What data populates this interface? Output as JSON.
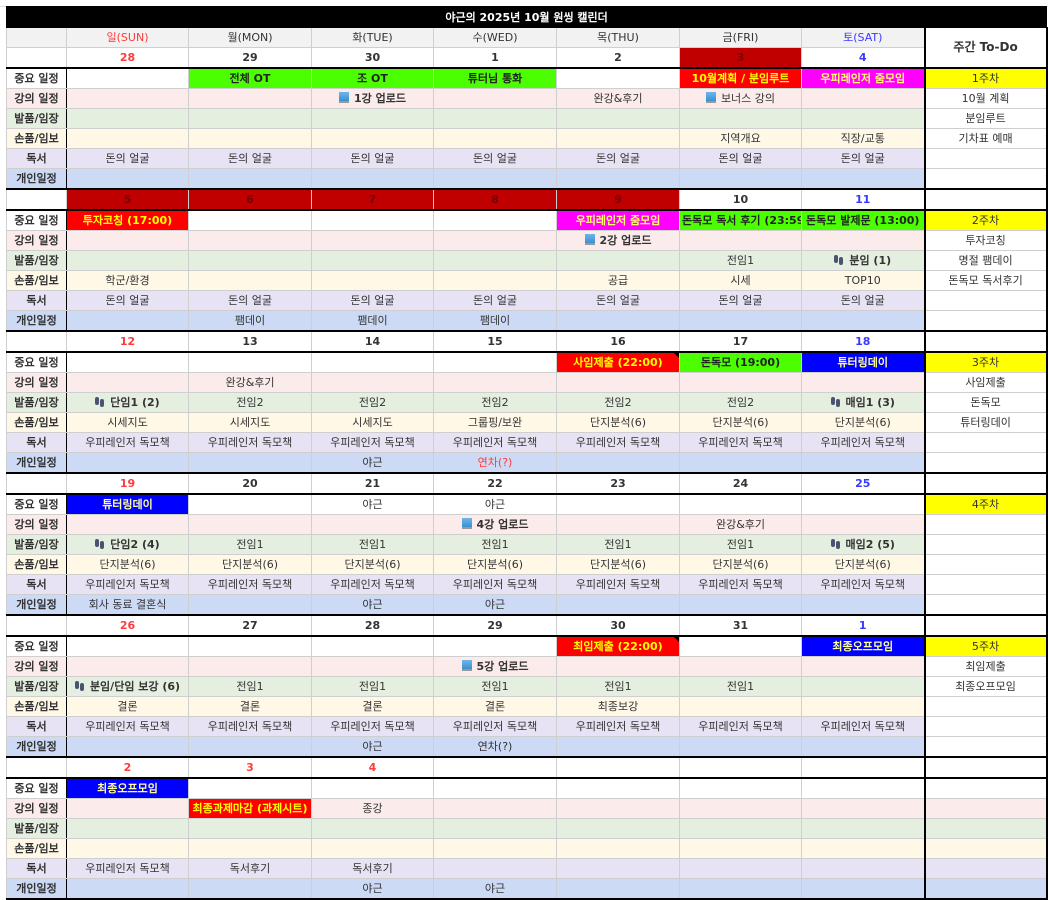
{
  "title": "야근의 2025년 10월 원씽 캘린더",
  "weekdays": [
    "일(SUN)",
    "월(MON)",
    "화(TUE)",
    "수(WED)",
    "목(THU)",
    "금(FRI)",
    "토(SAT)"
  ],
  "todo_header": "주간 To-Do",
  "row_labels": [
    "중요 일정",
    "강의 일정",
    "발품/임장",
    "손품/임보",
    "독서",
    "개인일정"
  ],
  "colors": {
    "sunday": "#ff3b3b",
    "saturday": "#3a3aff",
    "holiday": "#c00000",
    "green": "#4cff00",
    "red": "#ff0000",
    "magenta": "#ff00ff",
    "blue": "#0000ff",
    "yellow": "#ffff00"
  },
  "weeks": [
    {
      "dates": [
        "28",
        "29",
        "30",
        "1",
        "2",
        "3",
        "4"
      ],
      "holidays": [
        false,
        false,
        false,
        false,
        false,
        true,
        false
      ],
      "rows": [
        [
          "",
          {
            "t": "전체 OT",
            "s": "green"
          },
          {
            "t": "조 OT",
            "s": "green"
          },
          {
            "t": "튜터님 통화",
            "s": "green"
          },
          "",
          {
            "t": "10월계획 / 분임루트",
            "s": "red"
          },
          {
            "t": "우피레인저 줌모임",
            "s": "magenta"
          }
        ],
        [
          "",
          "",
          {
            "t": "1강 업로드",
            "i": "laptop-icon",
            "b": true
          },
          "",
          "완강&후기",
          {
            "t": "보너스 강의",
            "i": "laptop-icon"
          },
          ""
        ],
        [
          "",
          "",
          "",
          "",
          "",
          "",
          ""
        ],
        [
          "",
          "",
          "",
          "",
          "",
          "지역개요",
          "직장/교통"
        ],
        [
          "돈의 얼굴",
          "돈의 얼굴",
          "돈의 얼굴",
          "돈의 얼굴",
          "돈의 얼굴",
          "돈의 얼굴",
          "돈의 얼굴"
        ],
        [
          "",
          "",
          "",
          "",
          "",
          "",
          ""
        ]
      ],
      "todo": [
        "1주차",
        "10월 계획",
        "분임루트",
        "기차표 예매",
        "",
        ""
      ]
    },
    {
      "dates": [
        "5",
        "6",
        "7",
        "8",
        "9",
        "10",
        "11"
      ],
      "holidays": [
        true,
        true,
        true,
        true,
        true,
        false,
        false
      ],
      "rows": [
        [
          {
            "t": "투자코칭 (17:00)",
            "s": "red"
          },
          "",
          "",
          "",
          {
            "t": "우피레인저 줌모임",
            "s": "magenta"
          },
          {
            "t": "돈독모 독서 후기 (23:59",
            "s": "green"
          },
          {
            "t": "돈독모 발제문 (13:00)",
            "s": "green"
          }
        ],
        [
          "",
          "",
          "",
          "",
          {
            "t": "2강 업로드",
            "i": "laptop-icon",
            "b": true
          },
          "",
          ""
        ],
        [
          "",
          "",
          "",
          "",
          "",
          "전임1",
          {
            "t": "분임 (1)",
            "i": "footprints-icon",
            "b": true
          }
        ],
        [
          "학군/환경",
          "",
          "",
          "",
          "공급",
          "시세",
          "TOP10"
        ],
        [
          "돈의 얼굴",
          "돈의 얼굴",
          "돈의 얼굴",
          "돈의 얼굴",
          "돈의 얼굴",
          "돈의 얼굴",
          "돈의 얼굴"
        ],
        [
          "",
          "팸데이",
          "팸데이",
          "팸데이",
          "",
          "",
          ""
        ]
      ],
      "todo": [
        "2주차",
        "투자코칭",
        "명절 팸데이",
        "돈독모 독서후기",
        "",
        ""
      ]
    },
    {
      "dates": [
        "12",
        "13",
        "14",
        "15",
        "16",
        "17",
        "18"
      ],
      "holidays": [
        false,
        false,
        false,
        false,
        false,
        false,
        false
      ],
      "rows": [
        [
          "",
          "",
          "",
          "",
          {
            "t": "사임제출 (22:00)",
            "s": "red",
            "n": true
          },
          {
            "t": "돈독모 (19:00)",
            "s": "green"
          },
          {
            "t": "튜터링데이",
            "s": "blue"
          }
        ],
        [
          "",
          "완강&후기",
          "",
          "",
          "",
          "",
          ""
        ],
        [
          {
            "t": "단임1 (2)",
            "i": "footprints-icon",
            "b": true
          },
          "전임2",
          "전임2",
          "전임2",
          "전임2",
          "전임2",
          {
            "t": "매임1 (3)",
            "i": "footprints-icon",
            "b": true
          }
        ],
        [
          "시세지도",
          "시세지도",
          "시세지도",
          "그룹핑/보완",
          "단지분석(6)",
          "단지분석(6)",
          "단지분석(6)"
        ],
        [
          "우피레인저 독모책",
          "우피레인저 독모책",
          "우피레인저 독모책",
          "우피레인저 독모책",
          "우피레인저 독모책",
          "우피레인저 독모책",
          "우피레인저 독모책"
        ],
        [
          "",
          "",
          "야근",
          {
            "t": "연차(?)",
            "c": "red"
          },
          "",
          "",
          ""
        ]
      ],
      "todo": [
        "3주차",
        "사임제출",
        "돈독모",
        "튜터링데이",
        "",
        ""
      ]
    },
    {
      "dates": [
        "19",
        "20",
        "21",
        "22",
        "23",
        "24",
        "25"
      ],
      "holidays": [
        false,
        false,
        false,
        false,
        false,
        false,
        false
      ],
      "rows": [
        [
          {
            "t": "튜터링데이",
            "s": "blue"
          },
          "",
          "야근",
          "야근",
          "",
          "",
          ""
        ],
        [
          "",
          "",
          "",
          {
            "t": "4강 업로드",
            "i": "laptop-icon",
            "b": true
          },
          "",
          "완강&후기",
          ""
        ],
        [
          {
            "t": "단임2 (4)",
            "i": "footprints-icon",
            "b": true
          },
          "전임1",
          "전임1",
          "전임1",
          "전임1",
          "전임1",
          {
            "t": "매임2 (5)",
            "i": "footprints-icon",
            "b": true
          }
        ],
        [
          "단지분석(6)",
          "단지분석(6)",
          "단지분석(6)",
          "단지분석(6)",
          "단지분석(6)",
          "단지분석(6)",
          "단지분석(6)"
        ],
        [
          "우피레인저 독모책",
          "우피레인저 독모책",
          "우피레인저 독모책",
          "우피레인저 독모책",
          "우피레인저 독모책",
          "우피레인저 독모책",
          "우피레인저 독모책"
        ],
        [
          "회사 동료 결혼식",
          "",
          "야근",
          "야근",
          "",
          "",
          ""
        ]
      ],
      "todo": [
        "4주차",
        "",
        "",
        "",
        "",
        ""
      ]
    },
    {
      "dates": [
        "26",
        "27",
        "28",
        "29",
        "30",
        "31",
        "1"
      ],
      "holidays": [
        false,
        false,
        false,
        false,
        false,
        false,
        false
      ],
      "rows": [
        [
          "",
          "",
          "",
          "",
          {
            "t": "최임제출 (22:00)",
            "s": "red",
            "n": true
          },
          "",
          {
            "t": "최종오프모임",
            "s": "blue"
          }
        ],
        [
          "",
          "",
          "",
          {
            "t": "5강 업로드",
            "i": "laptop-icon",
            "b": true
          },
          "",
          "",
          ""
        ],
        [
          {
            "t": "분임/단임 보강 (6)",
            "i": "footprints-icon",
            "b": true
          },
          "전임1",
          "전임1",
          "전임1",
          "전임1",
          "전임1",
          ""
        ],
        [
          "결론",
          "결론",
          "결론",
          "결론",
          "최종보강",
          "",
          ""
        ],
        [
          "우피레인저 독모책",
          "우피레인저 독모책",
          "우피레인저 독모책",
          "우피레인저 독모책",
          "우피레인저 독모책",
          "우피레인저 독모책",
          "우피레인저 독모책"
        ],
        [
          "",
          "",
          "야근",
          "연차(?)",
          "",
          "",
          ""
        ]
      ],
      "todo": [
        "5주차",
        "최임제출",
        "최종오프모임",
        "",
        "",
        ""
      ]
    },
    {
      "dates": [
        "2",
        "3",
        "4",
        "",
        "",
        "",
        ""
      ],
      "red_dates": true,
      "holidays": [
        false,
        false,
        false,
        false,
        false,
        false,
        false
      ],
      "rows": [
        [
          {
            "t": "최종오프모임",
            "s": "blue"
          },
          "",
          "",
          "",
          "",
          "",
          ""
        ],
        [
          "",
          {
            "t": "최종과제마감 (과제시트)",
            "s": "red"
          },
          "종강",
          "",
          "",
          "",
          ""
        ],
        [
          "",
          "",
          "",
          "",
          "",
          "",
          ""
        ],
        [
          "",
          "",
          "",
          "",
          "",
          "",
          ""
        ],
        [
          "우피레인저 독모책",
          "독서후기",
          "독서후기",
          "",
          "",
          "",
          ""
        ],
        [
          "",
          "",
          "야근",
          "야근",
          "",
          "",
          ""
        ]
      ],
      "todo": [
        "",
        "",
        "",
        "",
        "",
        ""
      ],
      "todo_colored": true
    }
  ]
}
